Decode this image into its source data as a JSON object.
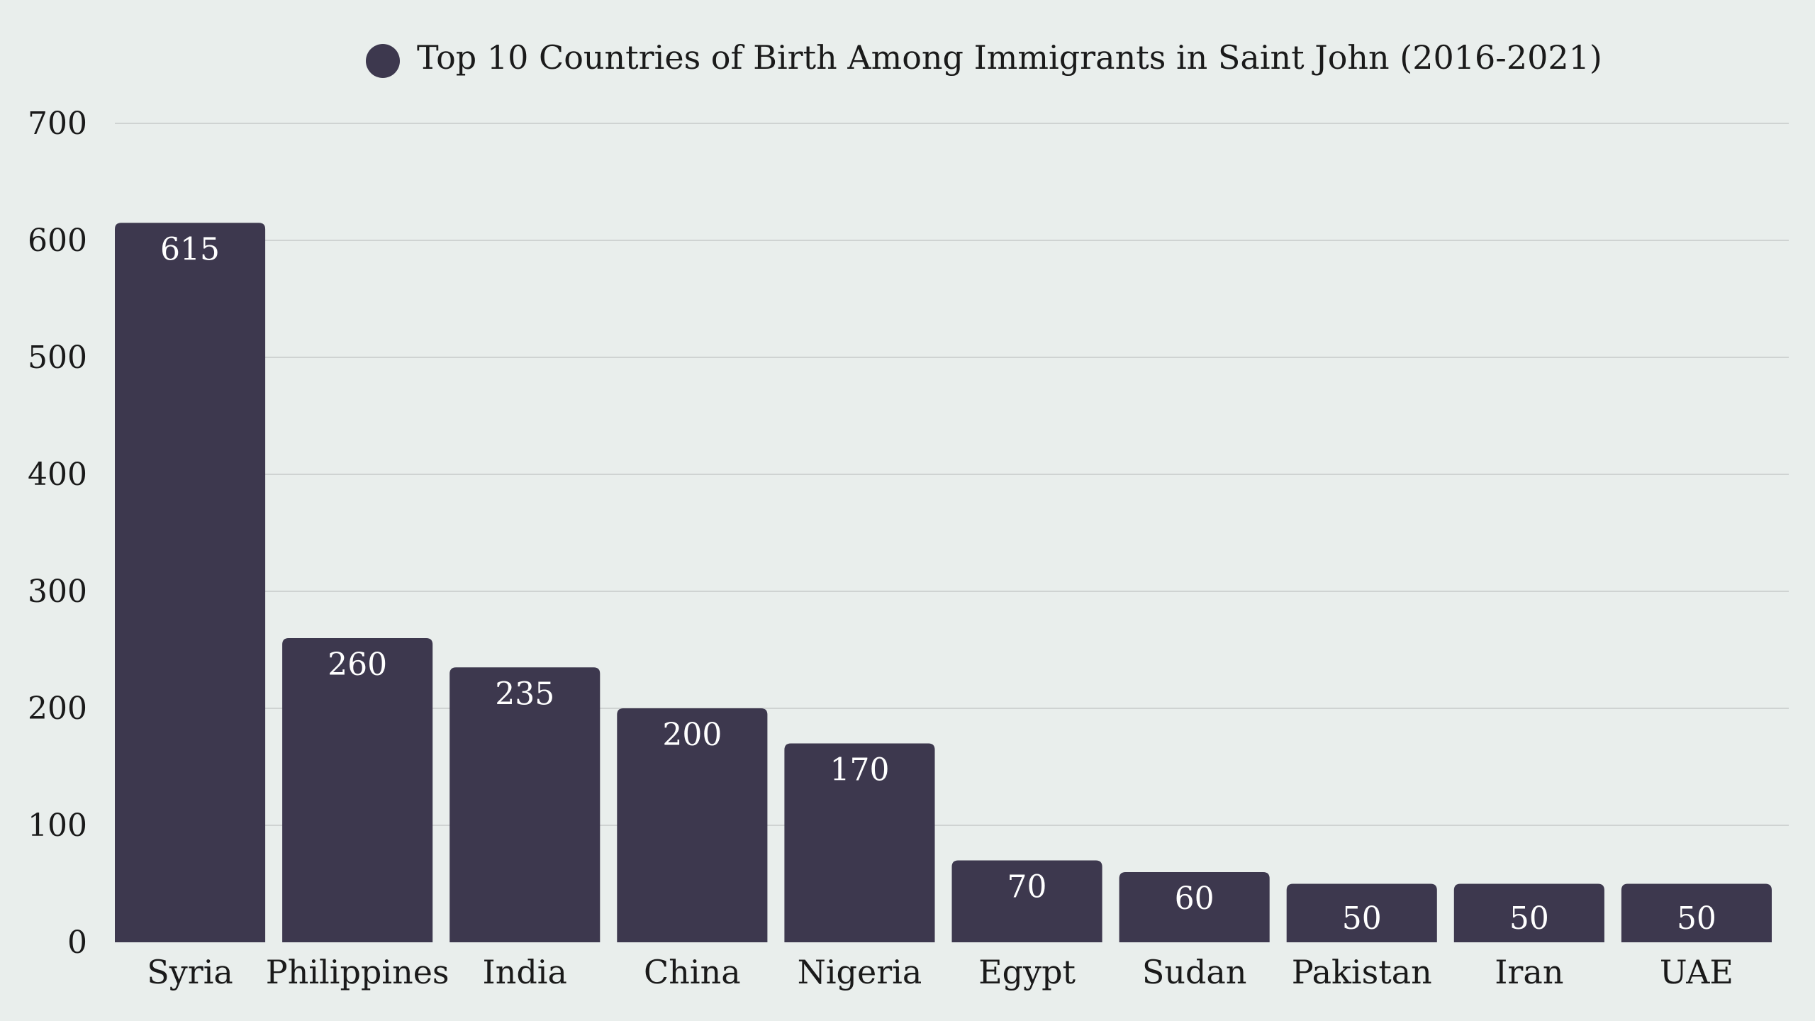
{
  "chart_data": {
    "type": "bar",
    "title": "Top 10 Countries of Birth Among Immigrants in Saint John (2016-2021)",
    "legend": [
      {
        "label": "Top 10 Countries of Birth Among Immigrants in Saint John (2016-2021)",
        "color": "#3d384e"
      }
    ],
    "legend_placement": "top-center",
    "categories": [
      "Syria",
      "Philippines",
      "India",
      "China",
      "Nigeria",
      "Egypt",
      "Sudan",
      "Pakistan",
      "Iran",
      "UAE"
    ],
    "values": [
      615,
      260,
      235,
      200,
      170,
      70,
      60,
      50,
      50,
      50
    ],
    "xlabel": "",
    "ylabel": "",
    "ylim": [
      0,
      700
    ],
    "yticks": [
      0,
      100,
      200,
      300,
      400,
      500,
      600,
      700
    ],
    "grid": true,
    "data_labels": true,
    "colors": {
      "bar": "#3d384e",
      "background": "#e9eeec",
      "grid": "#cfd3d2"
    }
  }
}
